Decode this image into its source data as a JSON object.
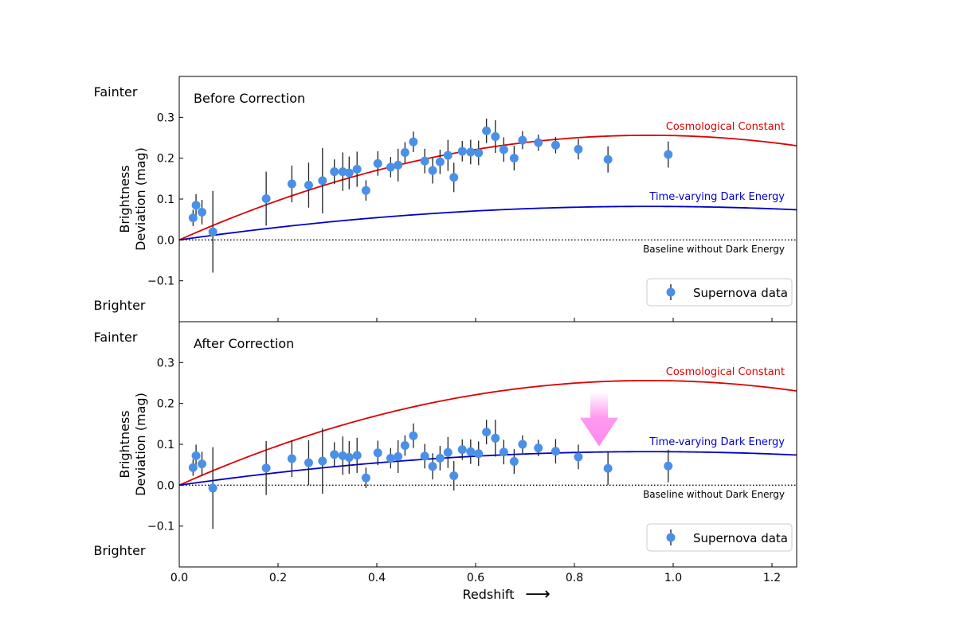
{
  "colors": {
    "lcdm": "#dd0000",
    "dark_energy": "#0000cc",
    "points": "#4a90e8",
    "errorbars": "#222222",
    "arrow": "#ff88ee"
  },
  "chart_data": [
    {
      "type": "scatter",
      "title": "Before Correction",
      "ylabel": [
        "Brightness",
        "Deviation (mag)"
      ],
      "side_labels": {
        "top": "Fainter",
        "bottom": "Brighter"
      },
      "xlim": [
        0.0,
        1.25
      ],
      "ylim": [
        -0.2,
        0.4
      ],
      "yticks": [
        -0.1,
        0.0,
        0.1,
        0.2,
        0.3
      ],
      "ytick_labels": [
        "−0.1",
        "0.0",
        "0.1",
        "0.2",
        "0.3"
      ],
      "lines": [
        {
          "name": "Cosmological Constant",
          "amplitude": 0.256,
          "peak_z": 0.95
        },
        {
          "name": "Time-varying Dark Energy",
          "amplitude": 0.082,
          "peak_z": 0.95
        }
      ],
      "baseline_label": "Baseline without Dark Energy",
      "legend": {
        "label": "Supernova data",
        "position": "lower right"
      },
      "series": [
        {
          "name": "Supernova data",
          "points": [
            [
              0.028,
              0.054,
              0.02
            ],
            [
              0.034,
              0.085,
              0.027
            ],
            [
              0.046,
              0.068,
              0.03
            ],
            [
              0.068,
              0.02,
              0.1
            ],
            [
              0.176,
              0.101,
              0.066
            ],
            [
              0.228,
              0.137,
              0.045
            ],
            [
              0.262,
              0.134,
              0.055
            ],
            [
              0.29,
              0.145,
              0.08
            ],
            [
              0.314,
              0.167,
              0.03
            ],
            [
              0.331,
              0.167,
              0.047
            ],
            [
              0.344,
              0.164,
              0.04
            ],
            [
              0.36,
              0.173,
              0.043
            ],
            [
              0.378,
              0.121,
              0.025
            ],
            [
              0.402,
              0.187,
              0.03
            ],
            [
              0.428,
              0.178,
              0.025
            ],
            [
              0.443,
              0.183,
              0.04
            ],
            [
              0.457,
              0.214,
              0.025
            ],
            [
              0.474,
              0.24,
              0.025
            ],
            [
              0.497,
              0.193,
              0.03
            ],
            [
              0.513,
              0.17,
              0.032
            ],
            [
              0.528,
              0.191,
              0.03
            ],
            [
              0.544,
              0.207,
              0.038
            ],
            [
              0.556,
              0.153,
              0.036
            ],
            [
              0.573,
              0.217,
              0.025
            ],
            [
              0.59,
              0.215,
              0.03
            ],
            [
              0.606,
              0.213,
              0.03
            ],
            [
              0.622,
              0.267,
              0.03
            ],
            [
              0.64,
              0.253,
              0.04
            ],
            [
              0.657,
              0.221,
              0.03
            ],
            [
              0.678,
              0.2,
              0.03
            ],
            [
              0.695,
              0.244,
              0.022
            ],
            [
              0.727,
              0.238,
              0.02
            ],
            [
              0.762,
              0.232,
              0.02
            ],
            [
              0.808,
              0.222,
              0.025
            ],
            [
              0.868,
              0.197,
              0.032
            ],
            [
              0.99,
              0.209,
              0.032
            ]
          ]
        }
      ]
    },
    {
      "type": "scatter",
      "title": "After Correction",
      "xlabel": "Redshift",
      "xlabel_arrow": "⟶",
      "ylabel": [
        "Brightness",
        "Deviation (mag)"
      ],
      "side_labels": {
        "top": "Fainter",
        "bottom": "Brighter"
      },
      "xlim": [
        0.0,
        1.25
      ],
      "ylim": [
        -0.2,
        0.4
      ],
      "xticks": [
        0.0,
        0.2,
        0.4,
        0.6,
        0.8,
        1.0,
        1.2
      ],
      "xtick_labels": [
        "0.0",
        "0.2",
        "0.4",
        "0.6",
        "0.8",
        "1.0",
        "1.2"
      ],
      "yticks": [
        -0.1,
        0.0,
        0.1,
        0.2,
        0.3
      ],
      "ytick_labels": [
        "−0.1",
        "0.0",
        "0.1",
        "0.2",
        "0.3"
      ],
      "lines": [
        {
          "name": "Cosmological Constant",
          "amplitude": 0.256,
          "peak_z": 0.95
        },
        {
          "name": "Time-varying Dark Energy",
          "amplitude": 0.082,
          "peak_z": 0.95
        }
      ],
      "baseline_label": "Baseline without Dark Energy",
      "legend": {
        "label": "Supernova data",
        "position": "lower right"
      },
      "arrow": {
        "x": 0.85,
        "y_from": 0.225,
        "y_to": 0.095
      },
      "series": [
        {
          "name": "Supernova data",
          "points": [
            [
              0.028,
              0.043,
              0.02
            ],
            [
              0.034,
              0.072,
              0.027
            ],
            [
              0.046,
              0.052,
              0.03
            ],
            [
              0.068,
              -0.007,
              0.1
            ],
            [
              0.176,
              0.042,
              0.066
            ],
            [
              0.228,
              0.065,
              0.045
            ],
            [
              0.262,
              0.055,
              0.055
            ],
            [
              0.29,
              0.059,
              0.08
            ],
            [
              0.314,
              0.075,
              0.03
            ],
            [
              0.331,
              0.072,
              0.047
            ],
            [
              0.344,
              0.068,
              0.04
            ],
            [
              0.36,
              0.073,
              0.043
            ],
            [
              0.378,
              0.018,
              0.025
            ],
            [
              0.402,
              0.079,
              0.03
            ],
            [
              0.428,
              0.066,
              0.025
            ],
            [
              0.443,
              0.07,
              0.04
            ],
            [
              0.457,
              0.097,
              0.025
            ],
            [
              0.474,
              0.121,
              0.03
            ],
            [
              0.497,
              0.071,
              0.03
            ],
            [
              0.513,
              0.046,
              0.032
            ],
            [
              0.528,
              0.066,
              0.03
            ],
            [
              0.544,
              0.08,
              0.038
            ],
            [
              0.556,
              0.023,
              0.036
            ],
            [
              0.573,
              0.087,
              0.025
            ],
            [
              0.59,
              0.082,
              0.03
            ],
            [
              0.606,
              0.077,
              0.03
            ],
            [
              0.622,
              0.13,
              0.03
            ],
            [
              0.64,
              0.115,
              0.045
            ],
            [
              0.657,
              0.081,
              0.03
            ],
            [
              0.678,
              0.058,
              0.03
            ],
            [
              0.695,
              0.1,
              0.022
            ],
            [
              0.727,
              0.091,
              0.02
            ],
            [
              0.762,
              0.083,
              0.03
            ],
            [
              0.808,
              0.069,
              0.03
            ],
            [
              0.868,
              0.041,
              0.04
            ],
            [
              0.99,
              0.047,
              0.04
            ]
          ]
        }
      ]
    }
  ]
}
